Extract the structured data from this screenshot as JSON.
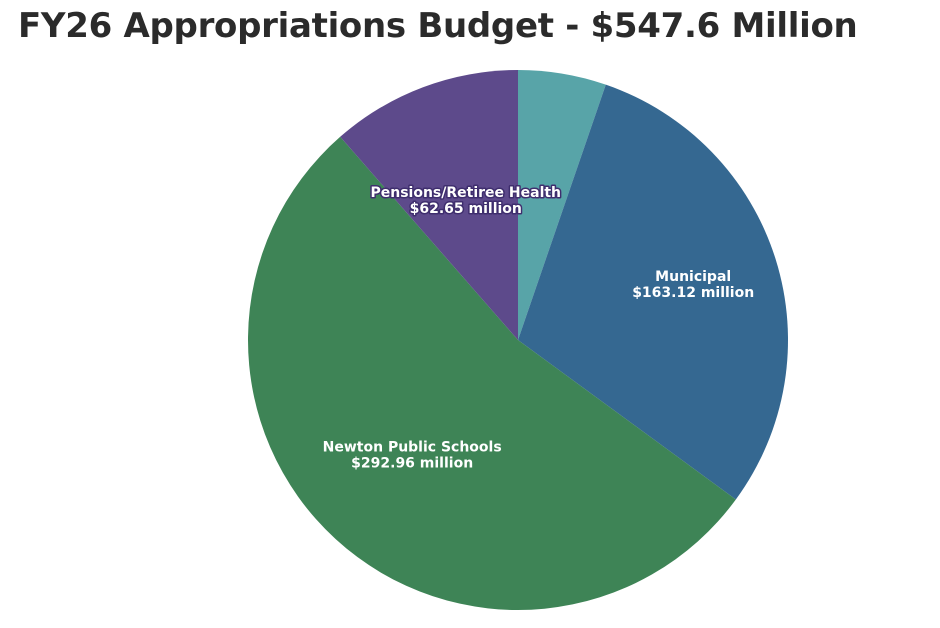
{
  "chart_data": {
    "type": "pie",
    "title": "FY26 Appropriations Budget - $547.6 Million",
    "slices": [
      {
        "label": "",
        "value_text": "",
        "value": 28.87,
        "color": "#58a4a8"
      },
      {
        "label": "Municipal",
        "value_text": "$163.12 million",
        "value": 163.12,
        "color": "#356891"
      },
      {
        "label": "Newton Public Schools",
        "value_text": "$292.96 million",
        "value": 292.96,
        "color": "#3e8456"
      },
      {
        "label": "Pensions/Retiree Health",
        "value_text": "$62.65 million",
        "value": 62.65,
        "color": "#5d4a8b"
      }
    ]
  }
}
